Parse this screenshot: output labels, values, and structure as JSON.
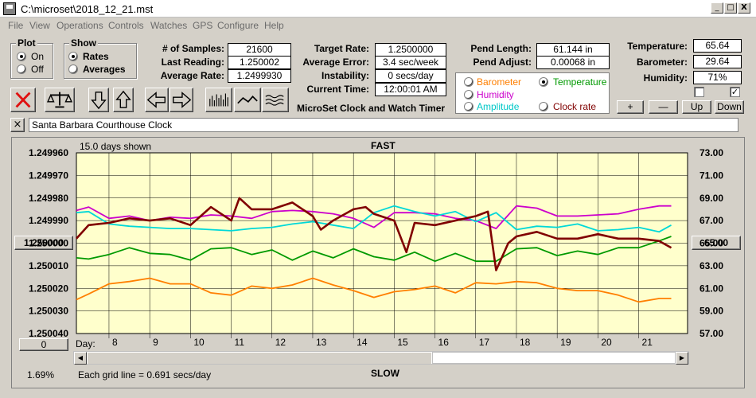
{
  "window": {
    "title": "C:\\microset\\2018_12_21.mst",
    "minimize": "_",
    "maximize": "□",
    "close": "X"
  },
  "menu": [
    "File",
    "View",
    "Operations",
    "Controls",
    "Watches",
    "GPS",
    "Configure",
    "Help"
  ],
  "plot": {
    "title": "Plot",
    "on": "On",
    "off": "Off",
    "selected": "on"
  },
  "show": {
    "title": "Show",
    "rates": "Rates",
    "averages": "Averages",
    "selected": "rates"
  },
  "stats": {
    "samples_label": "# of Samples:",
    "samples_value": "21600",
    "last_label": "Last Reading:",
    "last_value": "1.250002",
    "avg_label": "Average Rate:",
    "avg_value": "1.2499930"
  },
  "rates": {
    "target_label": "Target Rate:",
    "target_value": "1.2500000",
    "error_label": "Average Error:",
    "error_value": "3.4 sec/week",
    "instab_label": "Instability:",
    "instab_value": "0 secs/day",
    "time_label": "Current Time:",
    "time_value": "12:00:01 AM",
    "app_name": "MicroSet Clock and Watch Timer"
  },
  "pendulum": {
    "length_label": "Pend Length:",
    "length_value": "61.144 in",
    "adjust_label": "Pend Adjust:",
    "adjust_value": "0.00068 in"
  },
  "sensors": {
    "barometer": "Barometer",
    "temperature": "Temperature",
    "humidity": "Humidity",
    "amplitude": "Amplitude",
    "clockrate": "Clock rate",
    "selected": "temperature"
  },
  "environment": {
    "temp_label": "Temperature:",
    "temp_value": "65.64",
    "baro_label": "Barometer:",
    "baro_value": "29.64",
    "hum_label": "Humidity:",
    "hum_value": "71%",
    "check1": false,
    "check2": true
  },
  "adjust_buttons": {
    "plus": "+",
    "minus": "—",
    "up": "Up",
    "down": "Down"
  },
  "clock_name": "Santa Barbara Courthouse Clock",
  "clear_name": "×",
  "graph": {
    "days_shown": "15.0 days shown",
    "fast": "FAST",
    "slow": "SLOW",
    "day_label": "Day:",
    "grid_note": "Each grid line = 0.691 secs/day",
    "percent": "1.69%",
    "left_button": "0",
    "center_rate": "1.250000",
    "center_temp": "65.00"
  },
  "colors": {
    "plot_bg": "#ffffcc",
    "rate": "#800000",
    "temperature": "#009900",
    "barometer": "#ff7f00",
    "humidity": "#cc00cc",
    "amplitude": "#00d8d8",
    "clockrate": "#800000"
  },
  "chart_data": {
    "type": "line",
    "title": "",
    "xlabel": "Day:",
    "x_ticks": [
      8,
      9,
      10,
      11,
      12,
      13,
      14,
      15,
      16,
      17,
      18,
      19,
      20,
      21
    ],
    "xlim": [
      7.2,
      22.2
    ],
    "y_left_ticks": [
      "1.249960",
      "1.249970",
      "1.249980",
      "1.249990",
      "1.250000",
      "1.250010",
      "1.250020",
      "1.250030",
      "1.250040"
    ],
    "y_left_range": [
      1.24996,
      1.25004
    ],
    "y_left_inverted": true,
    "y_right_ticks": [
      "73.00",
      "71.00",
      "69.00",
      "67.00",
      "65.00",
      "63.00",
      "61.00",
      "59.00",
      "57.00"
    ],
    "y_right_range": [
      57,
      73
    ],
    "grid": true,
    "series": [
      {
        "name": "Humidity",
        "axis": "right",
        "x": [
          7.2,
          7.5,
          8.0,
          8.5,
          9.0,
          9.5,
          10.0,
          10.5,
          11.0,
          11.5,
          12.0,
          12.5,
          13.0,
          13.5,
          14.0,
          14.5,
          15.0,
          15.5,
          16.0,
          16.5,
          17.0,
          17.5,
          18.0,
          18.5,
          19.0,
          19.5,
          20.0,
          20.5,
          21.0,
          21.5,
          21.8
        ],
        "values": [
          67.9,
          68.2,
          67.2,
          67.4,
          67.0,
          67.3,
          67.2,
          67.5,
          67.4,
          67.2,
          67.8,
          67.9,
          67.8,
          67.6,
          67.2,
          66.4,
          67.7,
          67.7,
          67.6,
          67.2,
          67.0,
          66.3,
          68.3,
          68.1,
          67.4,
          67.4,
          67.5,
          67.6,
          68.0,
          68.3,
          68.3
        ]
      },
      {
        "name": "Temperature",
        "axis": "right",
        "x": [
          7.2,
          7.5,
          8.0,
          8.5,
          9.0,
          9.5,
          10.0,
          10.5,
          11.0,
          11.5,
          12.0,
          12.5,
          13.0,
          13.5,
          14.0,
          14.5,
          15.0,
          15.5,
          16.0,
          16.5,
          17.0,
          17.5,
          18.0,
          18.5,
          19.0,
          19.5,
          20.0,
          20.5,
          21.0,
          21.5,
          21.8
        ],
        "values": [
          63.7,
          63.6,
          64.0,
          64.6,
          64.1,
          64.0,
          63.5,
          64.5,
          64.6,
          64.0,
          64.4,
          63.5,
          64.3,
          63.7,
          64.5,
          63.8,
          63.5,
          64.2,
          63.4,
          64.1,
          63.4,
          63.4,
          64.5,
          64.6,
          63.9,
          64.3,
          64.0,
          64.6,
          64.6,
          65.2,
          65.6
        ]
      },
      {
        "name": "Barometer",
        "axis": "right",
        "x": [
          7.2,
          7.5,
          8.0,
          8.5,
          9.0,
          9.5,
          10.0,
          10.5,
          11.0,
          11.5,
          12.0,
          12.5,
          13.0,
          13.5,
          14.0,
          14.5,
          15.0,
          15.5,
          16.0,
          16.5,
          17.0,
          17.5,
          18.0,
          18.5,
          19.0,
          19.5,
          20.0,
          20.5,
          21.0,
          21.5,
          21.8
        ],
        "values": [
          60.0,
          60.5,
          61.4,
          61.6,
          61.9,
          61.4,
          61.4,
          60.6,
          60.4,
          61.2,
          61.0,
          61.3,
          61.9,
          61.3,
          60.8,
          60.2,
          60.7,
          60.9,
          61.2,
          60.6,
          61.5,
          61.4,
          61.6,
          61.5,
          61.0,
          60.8,
          60.8,
          60.4,
          59.8,
          60.1,
          60.1
        ]
      },
      {
        "name": "Amplitude",
        "axis": "right",
        "x": [
          7.2,
          7.5,
          8.0,
          8.5,
          9.0,
          9.5,
          10.0,
          10.5,
          11.0,
          11.5,
          12.0,
          12.5,
          13.0,
          13.5,
          14.0,
          14.5,
          15.0,
          15.5,
          16.0,
          16.5,
          17.0,
          17.5,
          18.0,
          18.5,
          19.0,
          19.5,
          20.0,
          20.5,
          21.0,
          21.5,
          21.8
        ],
        "values": [
          67.7,
          67.8,
          66.7,
          66.5,
          66.4,
          66.3,
          66.3,
          66.2,
          66.1,
          66.3,
          66.4,
          66.7,
          66.9,
          66.6,
          66.3,
          67.7,
          68.3,
          67.8,
          67.4,
          67.8,
          66.9,
          67.7,
          66.2,
          66.5,
          66.4,
          66.7,
          66.1,
          66.2,
          66.4,
          66.0,
          66.6
        ]
      },
      {
        "name": "Clock rate",
        "axis": "left",
        "x": [
          7.2,
          7.5,
          8.0,
          8.5,
          9.0,
          9.5,
          10.0,
          10.5,
          11.0,
          11.2,
          11.5,
          12.0,
          12.5,
          13.0,
          13.2,
          13.5,
          14.0,
          14.3,
          14.5,
          15.0,
          15.3,
          15.5,
          16.0,
          16.5,
          17.0,
          17.3,
          17.5,
          17.8,
          18.0,
          18.5,
          19.0,
          19.5,
          20.0,
          20.5,
          21.0,
          21.5,
          21.8
        ],
        "values": [
          1.249998,
          1.249992,
          1.249991,
          1.249989,
          1.24999,
          1.249989,
          1.249992,
          1.249984,
          1.24999,
          1.24998,
          1.249985,
          1.249985,
          1.249982,
          1.249988,
          1.249994,
          1.24999,
          1.249985,
          1.249984,
          1.249987,
          1.24999,
          1.250004,
          1.249991,
          1.249992,
          1.24999,
          1.249988,
          1.249986,
          1.250012,
          1.25,
          1.249997,
          1.249995,
          1.249998,
          1.249998,
          1.249996,
          1.249998,
          1.249998,
          1.249999,
          1.250002
        ]
      }
    ]
  }
}
